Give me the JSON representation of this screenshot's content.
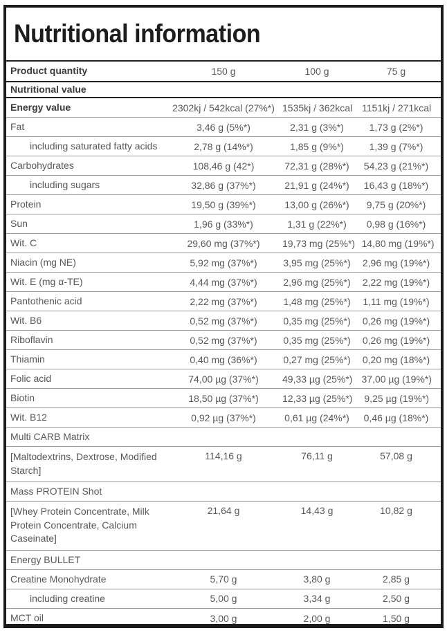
{
  "title": "Nutritional information",
  "colors": {
    "frame": "#1a1a1a",
    "thick_separator": "#212121",
    "thin_separator": "#9a9a9a",
    "text": "#58585a",
    "bold_text": "#3a3a3a",
    "title_text": "#1d1d1b"
  },
  "table": {
    "header": {
      "label": "Product quantity",
      "values": [
        "150 g",
        "100 g",
        "75 g"
      ]
    },
    "section_header": {
      "label": "Nutritional value"
    },
    "rows": [
      {
        "label": "Energy value",
        "bold": true,
        "values": [
          "2302kj / 542kcal (27%*)",
          "1535kj / 362kcal",
          "1151kj / 271kcal"
        ]
      },
      {
        "label": "Fat",
        "values": [
          "3,46 g (5%*)",
          "2,31 g (3%*)",
          "1,73 g (2%*)"
        ]
      },
      {
        "label": "including saturated fatty acids",
        "indent": true,
        "values": [
          "2,78 g (14%*)",
          "1,85 g (9%*)",
          "1,39 g (7%*)"
        ]
      },
      {
        "label": "Carbohydrates",
        "values": [
          "108,46 g (42*)",
          "72,31 g (28%*)",
          "54,23 g (21%*)"
        ]
      },
      {
        "label": "including sugars",
        "indent": true,
        "values": [
          "32,86 g (37%*)",
          "21,91 g (24%*)",
          "16,43 g (18%*)"
        ]
      },
      {
        "label": "Protein",
        "values": [
          "19,50 g (39%*)",
          "13,00 g (26%*)",
          "9,75 g (20%*)"
        ]
      },
      {
        "label": "Sun",
        "values": [
          "1,96 g (33%*)",
          "1,31 g (22%*)",
          "0,98 g (16%*)"
        ]
      },
      {
        "label": "Wit. C",
        "values": [
          "29,60 mg (37%*)",
          "19,73 mg (25%*)",
          "14,80 mg (19%*)"
        ]
      },
      {
        "label": "Niacin (mg NE)",
        "values": [
          "5,92 mg (37%*)",
          "3,95 mg (25%*)",
          "2,96 mg (19%*)"
        ]
      },
      {
        "label": "Wit. E (mg α-TE)",
        "values": [
          "4,44 mg (37%*)",
          "2,96 mg (25%*)",
          "2,22 mg (19%*)"
        ]
      },
      {
        "label": "Pantothenic acid",
        "values": [
          "2,22 mg (37%*)",
          "1,48 mg (25%*)",
          "1,11 mg (19%*)"
        ]
      },
      {
        "label": "Wit. B6",
        "values": [
          "0,52 mg (37%*)",
          "0,35 mg (25%*)",
          "0,26 mg (19%*)"
        ]
      },
      {
        "label": "Riboflavin",
        "values": [
          "0,52 mg (37%*)",
          "0,35 mg (25%*)",
          "0,26 mg (19%*)"
        ]
      },
      {
        "label": "Thiamin",
        "values": [
          "0,40 mg (36%*)",
          "0,27 mg (25%*)",
          "0,20 mg (18%*)"
        ]
      },
      {
        "label": "Folic acid",
        "values": [
          "74,00 µg (37%*)",
          "49,33 µg (25%*)",
          "37,00 µg (19%*)"
        ]
      },
      {
        "label": "Biotin",
        "values": [
          "18,50 µg (37%*)",
          "12,33 µg (25%*)",
          "9,25 µg (19%*)"
        ]
      },
      {
        "label": "Wit. B12",
        "values": [
          "0,92 µg (37%*)",
          "0,61 µg (24%*)",
          "0,46 µg (18%*)"
        ]
      },
      {
        "label": "Multi CARB Matrix",
        "values": [
          "",
          "",
          ""
        ]
      },
      {
        "label": "[Maltodextrins, Dextrose, Modified Starch]",
        "twoline": true,
        "values": [
          "114,16 g",
          "76,11 g",
          "57,08 g"
        ]
      },
      {
        "label": "Mass PROTEIN Shot",
        "values": [
          "",
          "",
          ""
        ]
      },
      {
        "label": "[Whey Protein Concentrate, Milk Protein Concentrate, Calcium Caseinate]",
        "twoline": true,
        "values": [
          "21,64 g",
          "14,43 g",
          "10,82 g"
        ]
      },
      {
        "label": "Energy BULLET",
        "values": [
          "",
          "",
          ""
        ]
      },
      {
        "label": "Creatine Monohydrate",
        "values": [
          "5,70 g",
          "3,80 g",
          "2,85 g"
        ]
      },
      {
        "label": "including creatine",
        "indent": true,
        "values": [
          "5,00 g",
          "3,34 g",
          "2,50 g"
        ]
      },
      {
        "label": "MCT oil",
        "last": true,
        "values": [
          "3,00 g",
          "2,00 g",
          "1,50 g"
        ]
      }
    ]
  }
}
